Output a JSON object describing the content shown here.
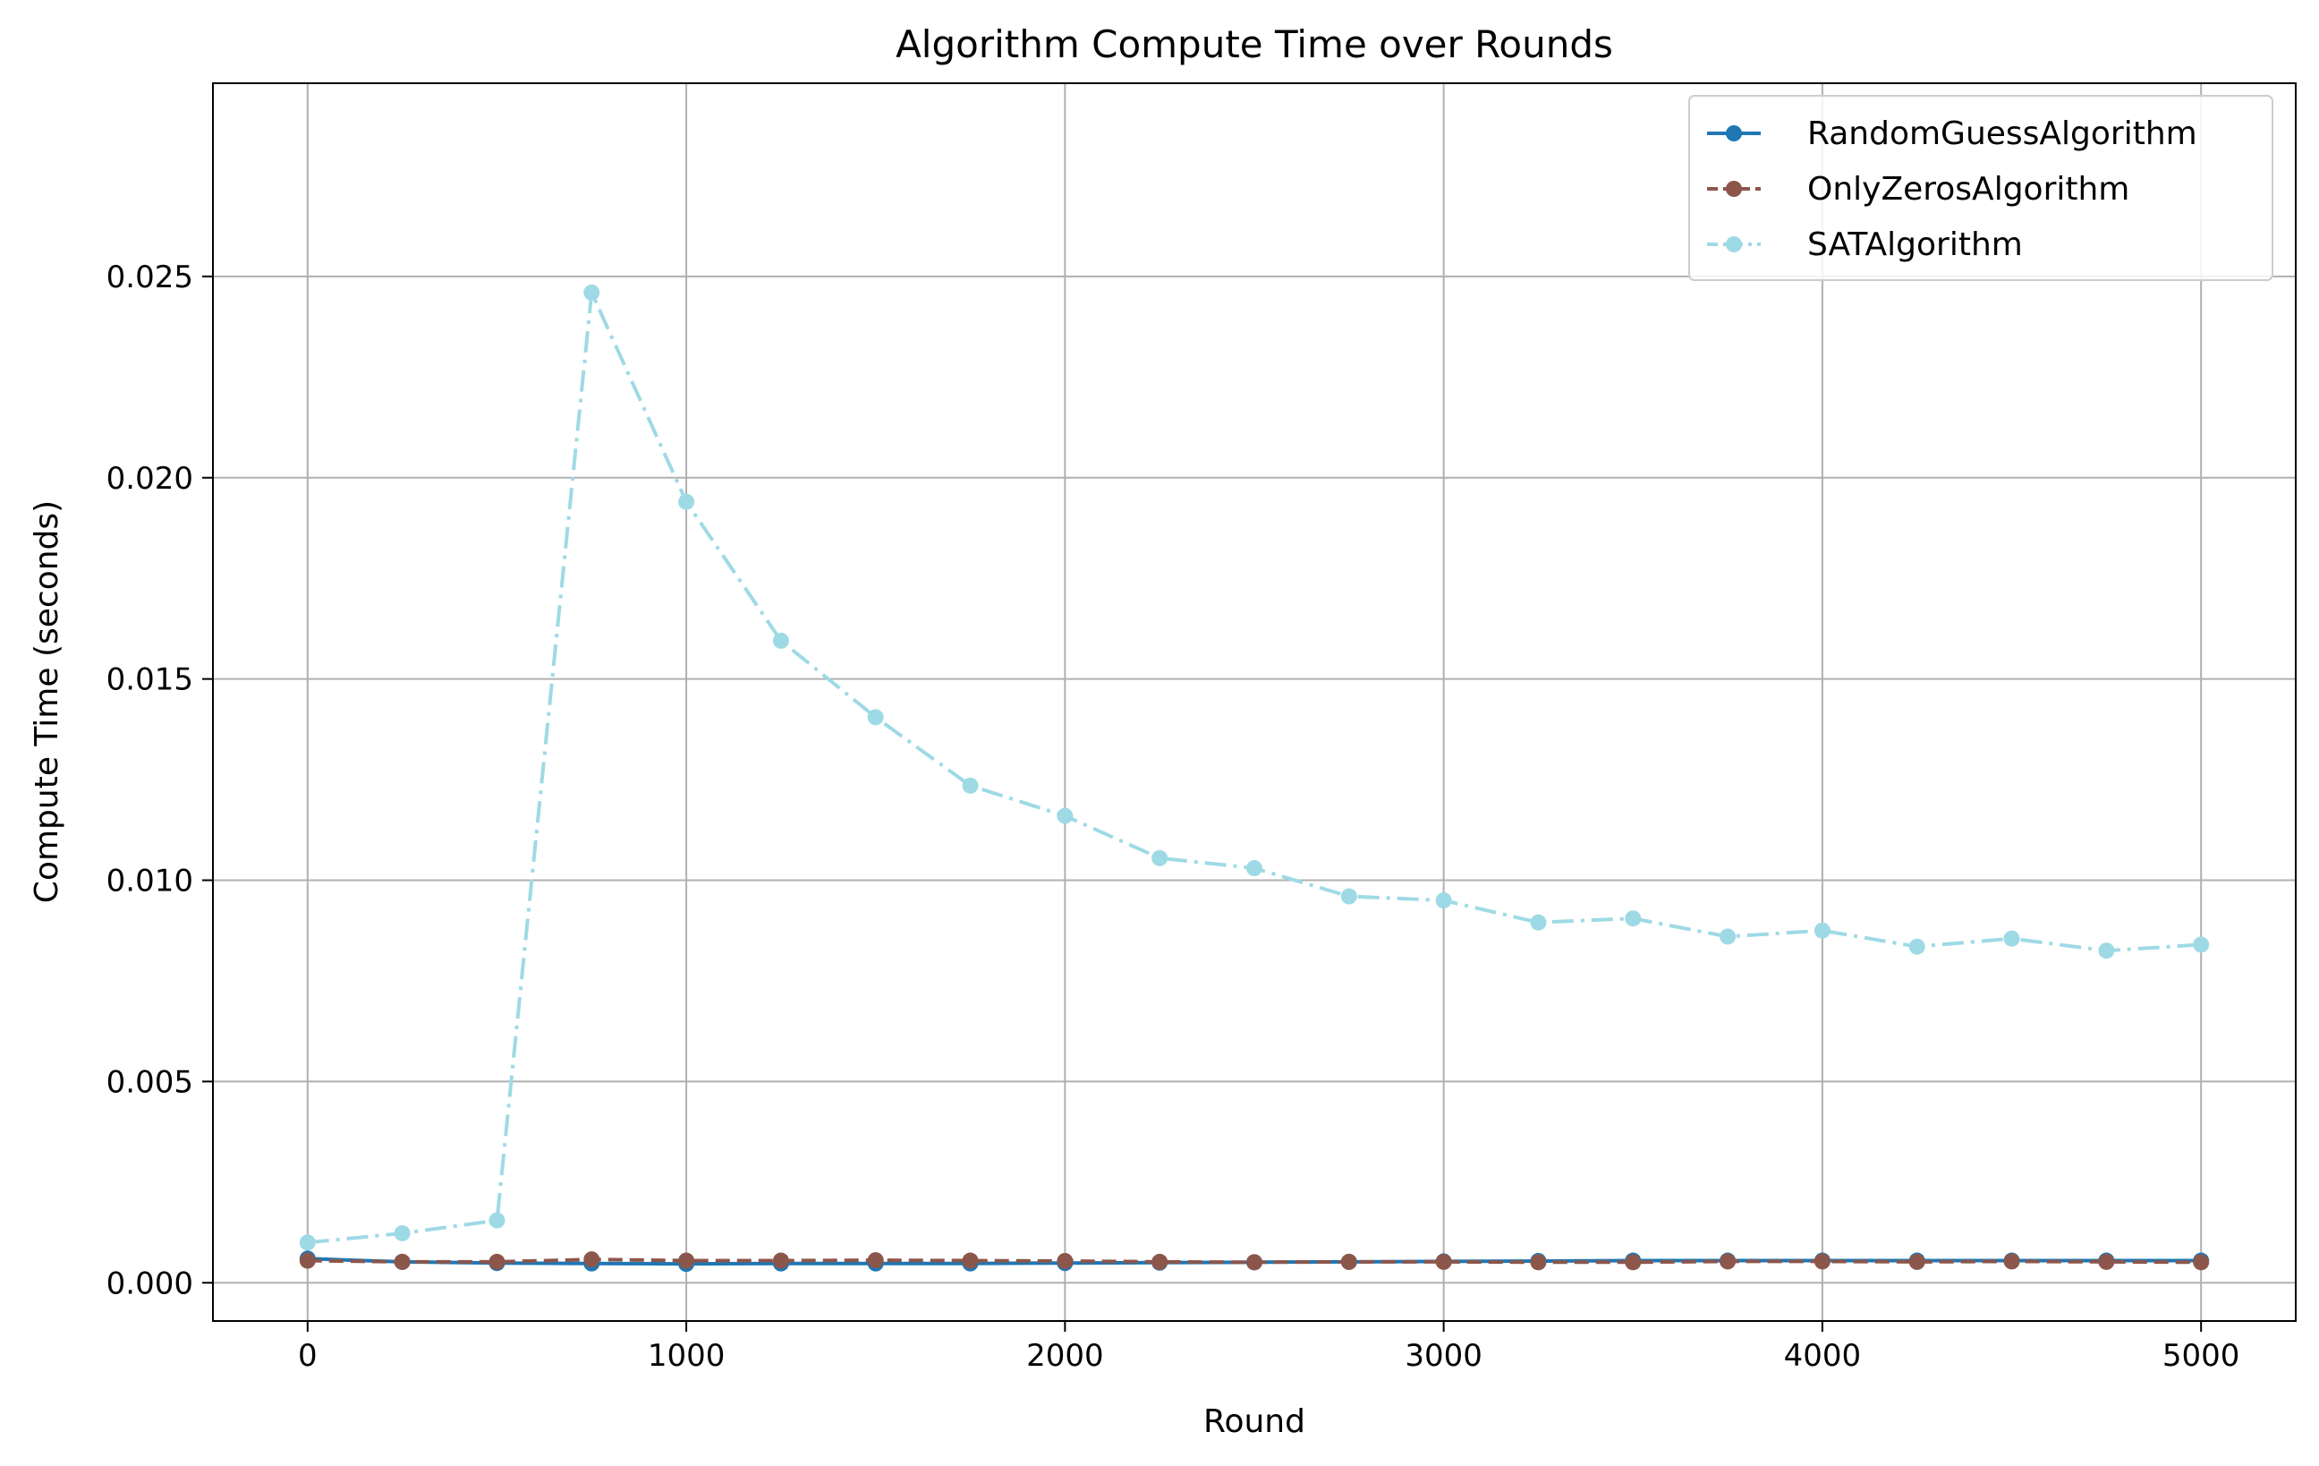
{
  "chart_data": {
    "type": "line",
    "title": "Algorithm Compute Time over Rounds",
    "xlabel": "Round",
    "ylabel": "Compute Time (seconds)",
    "xlim": [
      -250,
      5250
    ],
    "ylim": [
      -0.00095,
      0.0298
    ],
    "xticks": [
      0,
      1000,
      2000,
      3000,
      4000,
      5000
    ],
    "yticks": [
      0.0,
      0.005,
      0.01,
      0.015,
      0.02,
      0.025
    ],
    "ytick_labels": [
      "0.000",
      "0.005",
      "0.010",
      "0.015",
      "0.020",
      "0.025"
    ],
    "grid": true,
    "legend_position": "top-right",
    "series": [
      {
        "name": "RandomGuessAlgorithm",
        "color": "#1f77b4",
        "line_style": "solid",
        "x": [
          0,
          250,
          500,
          750,
          1000,
          1250,
          1500,
          1750,
          2000,
          2250,
          2500,
          2750,
          3000,
          3250,
          3500,
          3750,
          4000,
          4250,
          4500,
          4750,
          5000
        ],
        "values": [
          0.0006,
          0.00052,
          0.00049,
          0.00048,
          0.00047,
          0.00048,
          0.00048,
          0.00048,
          0.00049,
          0.0005,
          0.00051,
          0.00052,
          0.00053,
          0.00054,
          0.00055,
          0.00055,
          0.00055,
          0.00055,
          0.00055,
          0.00055,
          0.00055
        ]
      },
      {
        "name": "OnlyZerosAlgorithm",
        "color": "#8c564b",
        "line_style": "dashed",
        "x": [
          0,
          250,
          500,
          750,
          1000,
          1250,
          1500,
          1750,
          2000,
          2250,
          2500,
          2750,
          3000,
          3250,
          3500,
          3750,
          4000,
          4250,
          4500,
          4750,
          5000
        ],
        "values": [
          0.00055,
          0.00052,
          0.00052,
          0.00058,
          0.00055,
          0.00055,
          0.00056,
          0.00055,
          0.00054,
          0.00052,
          0.00051,
          0.00052,
          0.00052,
          0.00051,
          0.00051,
          0.00053,
          0.00053,
          0.00052,
          0.00053,
          0.00052,
          0.00051
        ]
      },
      {
        "name": "SATAlgorithm",
        "color": "#9edae5",
        "line_style": "dashdot",
        "x": [
          0,
          250,
          500,
          750,
          1000,
          1250,
          1500,
          1750,
          2000,
          2250,
          2500,
          2750,
          3000,
          3250,
          3500,
          3750,
          4000,
          4250,
          4500,
          4750,
          5000
        ],
        "values": [
          0.001,
          0.00123,
          0.00155,
          0.0246,
          0.0194,
          0.01595,
          0.01405,
          0.01235,
          0.0116,
          0.01055,
          0.0103,
          0.0096,
          0.0095,
          0.00895,
          0.00905,
          0.0086,
          0.00875,
          0.00835,
          0.00855,
          0.00825,
          0.0084
        ]
      }
    ]
  }
}
